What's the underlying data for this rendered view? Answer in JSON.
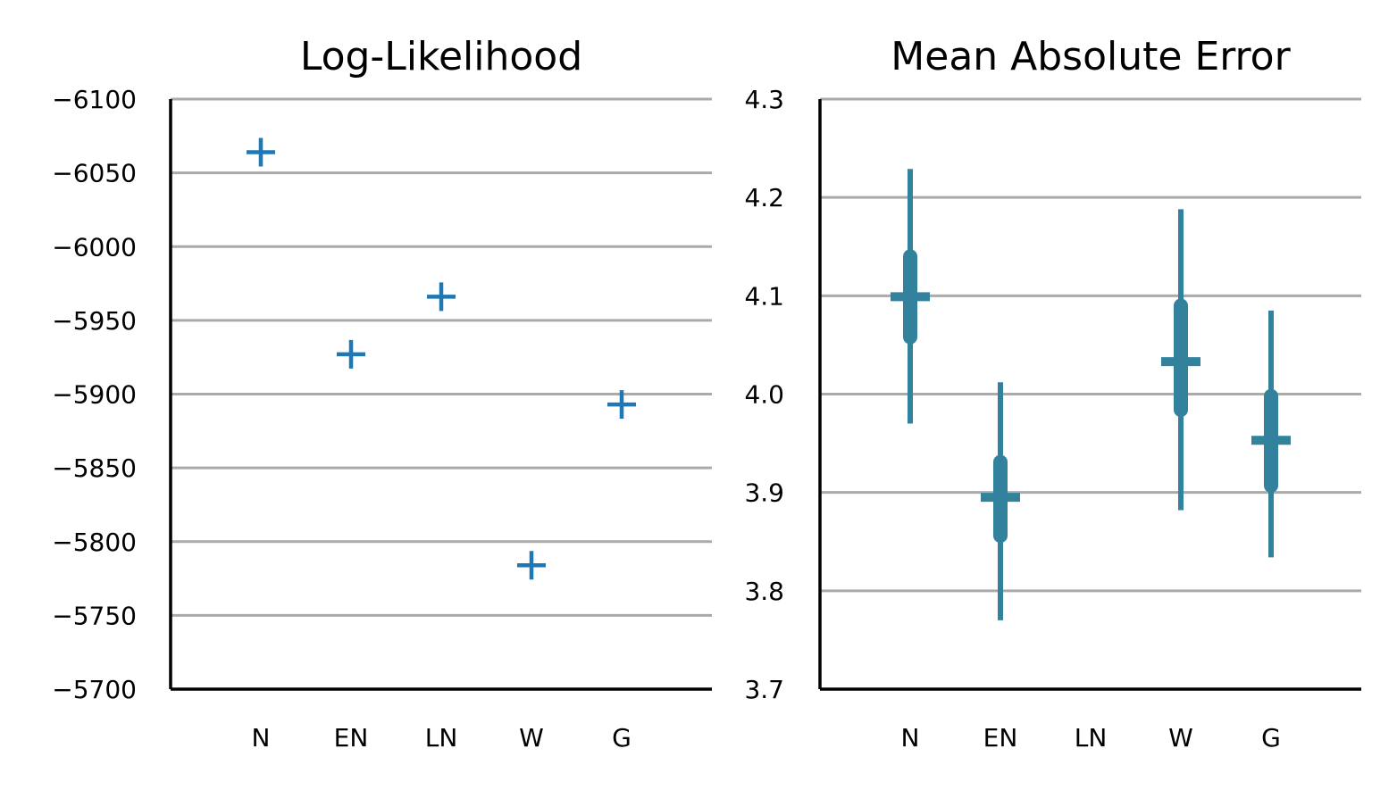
{
  "chart_data": [
    {
      "type": "scatter",
      "title": "Log-Likelihood",
      "xlabel": "",
      "ylabel": "",
      "categories": [
        "N",
        "EN",
        "LN",
        "W",
        "G"
      ],
      "yticks": [
        "−6100",
        "−6050",
        "−6000",
        "−5950",
        "−5900",
        "−5850",
        "−5800",
        "−5750",
        "−5700"
      ],
      "ylim": [
        -6100,
        -5700
      ],
      "y_inverted": true,
      "grid": "horizontal",
      "color": "#1f77b4",
      "marker": "plus",
      "points": [
        {
          "category": "N",
          "value": -6064
        },
        {
          "category": "EN",
          "value": -5927
        },
        {
          "category": "LN",
          "value": -5966
        },
        {
          "category": "W",
          "value": -5784
        },
        {
          "category": "G",
          "value": -5893
        }
      ]
    },
    {
      "type": "scatter",
      "title": "Mean Absolute Error",
      "xlabel": "",
      "ylabel": "",
      "categories": [
        "N",
        "EN",
        "LN",
        "W",
        "G"
      ],
      "yticks": [
        "4.3",
        "4.2",
        "4.1",
        "4.0",
        "3.9",
        "3.8",
        "3.7"
      ],
      "ylim": [
        3.7,
        4.3
      ],
      "grid": "horizontal",
      "color": "#33829d",
      "marker": "plus-with-error-bars",
      "points": [
        {
          "category": "N",
          "mean": 4.099,
          "inner": [
            4.058,
            4.14
          ],
          "outer": [
            3.97,
            4.229
          ]
        },
        {
          "category": "EN",
          "mean": 3.895,
          "inner": [
            3.856,
            3.931
          ],
          "outer": [
            3.77,
            4.012
          ]
        },
        {
          "category": "W",
          "mean": 4.033,
          "inner": [
            3.984,
            4.09
          ],
          "outer": [
            3.882,
            4.188
          ]
        },
        {
          "category": "G",
          "mean": 3.953,
          "inner": [
            3.907,
            3.998
          ],
          "outer": [
            3.834,
            4.085
          ]
        }
      ]
    }
  ]
}
